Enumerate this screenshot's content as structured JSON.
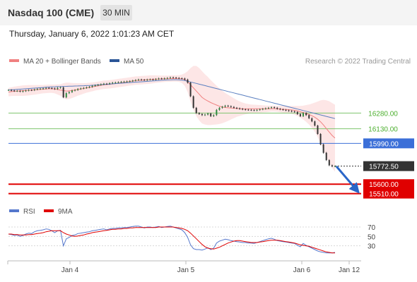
{
  "header": {
    "title": "Nasdaq 100 (CME)",
    "interval": "30 MIN"
  },
  "datetime": "Thursday, January 6, 2022 1:01:23 AM CET",
  "legend": [
    {
      "label": "MA 20 + Bollinger Bands",
      "color": "#f08080"
    },
    {
      "label": "MA 50",
      "color": "#2a5597"
    }
  ],
  "credit": "Research © 2022 Trading Central",
  "chart_data": [
    {
      "type": "candlestick",
      "title": "",
      "ylim": [
        15460,
        16700
      ],
      "x_labels": [
        "Jan 4",
        "Jan 5",
        "Jan 6",
        "Jan 12"
      ],
      "last_price": 15772.5,
      "levels": [
        {
          "label": "16280.00",
          "value": 16280,
          "color": "#7ec46e",
          "kind": "resistance"
        },
        {
          "label": "16130.00",
          "value": 16130,
          "color": "#7ec46e",
          "kind": "resistance"
        },
        {
          "label": "15990.00",
          "value": 15990,
          "color": "#3b6fd8",
          "kind": "pivot"
        },
        {
          "label": "15772.50",
          "value": 15772.5,
          "color": "#333333",
          "kind": "last"
        },
        {
          "label": "15600.00",
          "value": 15600,
          "color": "#e00000",
          "kind": "support"
        },
        {
          "label": "15510.00",
          "value": 15510,
          "color": "#e00000",
          "kind": "support"
        }
      ],
      "closes": [
        16500,
        16495,
        16490,
        16492,
        16485,
        16490,
        16495,
        16500,
        16498,
        16505,
        16510,
        16512,
        16515,
        16520,
        16518,
        16515,
        16510,
        16520,
        16525,
        16430,
        16470,
        16480,
        16495,
        16500,
        16510,
        16515,
        16520,
        16525,
        16530,
        16540,
        16545,
        16550,
        16555,
        16560,
        16558,
        16565,
        16570,
        16572,
        16575,
        16578,
        16580,
        16582,
        16585,
        16590,
        16595,
        16600,
        16598,
        16595,
        16600,
        16602,
        16600,
        16605,
        16610,
        16608,
        16612,
        16615,
        16620,
        16618,
        16615,
        16612,
        16610,
        16600,
        16570,
        16440,
        16330,
        16280,
        16270,
        16260,
        16265,
        16275,
        16250,
        16260,
        16310,
        16330,
        16340,
        16350,
        16345,
        16338,
        16330,
        16325,
        16320,
        16315,
        16312,
        16310,
        16308,
        16305,
        16310,
        16315,
        16320,
        16325,
        16330,
        16335,
        16330,
        16320,
        16315,
        16310,
        16305,
        16300,
        16295,
        16290,
        16270,
        16250,
        16280,
        16260,
        16230,
        16200,
        16160,
        16080,
        15980,
        15900,
        15830,
        15780,
        15770,
        15772.5
      ],
      "ma20": [
        16480,
        16485,
        16488,
        16490,
        16492,
        16494,
        16496,
        16498,
        16500,
        16502,
        16504,
        16506,
        16508,
        16510,
        16512,
        16512,
        16510,
        16505,
        16500,
        16495,
        16490,
        16492,
        16495,
        16500,
        16505,
        16510,
        16515,
        16520,
        16525,
        16530,
        16535,
        16540,
        16545,
        16550,
        16552,
        16555,
        16558,
        16562,
        16566,
        16570,
        16574,
        16578,
        16582,
        16586,
        16590,
        16592,
        16594,
        16596,
        16598,
        16600,
        16602,
        16604,
        16605,
        16606,
        16607,
        16608,
        16609,
        16610,
        16610,
        16610,
        16608,
        16600,
        16580,
        16550,
        16520,
        16490,
        16460,
        16430,
        16410,
        16395,
        16380,
        16368,
        16356,
        16345,
        16338,
        16333,
        16330,
        16328,
        16326,
        16324,
        16322,
        16320,
        16320,
        16320,
        16320,
        16320,
        16320,
        16320,
        16320,
        16320,
        16320,
        16322,
        16322,
        16320,
        16318,
        16316,
        16314,
        16312,
        16310,
        16306,
        16300,
        16292,
        16284,
        16276,
        16266,
        16254,
        16240,
        16220,
        16196,
        16166,
        16132,
        16098,
        16066,
        16040
      ],
      "ma50": [
        16500,
        16502,
        16504,
        16506,
        16508,
        16510,
        16512,
        16514,
        16516,
        16518,
        16520,
        16522,
        16524,
        16526,
        16528,
        16530,
        16531,
        16532,
        16533,
        16534,
        16535,
        16536,
        16537,
        16538,
        16539,
        16540,
        16541,
        16542,
        16543,
        16545,
        16547,
        16549,
        16551,
        16553,
        16555,
        16557,
        16559,
        16561,
        16563,
        16565,
        16567,
        16569,
        16571,
        16573,
        16575,
        16577,
        16579,
        16581,
        16583,
        16585,
        16587,
        16589,
        16591,
        16593,
        16595,
        16596,
        16597,
        16598,
        16598,
        16597,
        16595,
        16590,
        16584,
        16577,
        16570,
        16563,
        16556,
        16549,
        16542,
        16535,
        16528,
        16521,
        16514,
        16507,
        16500,
        16493,
        16486,
        16479,
        16472,
        16465,
        16458,
        16451,
        16444,
        16437,
        16430,
        16423,
        16416,
        16409,
        16402,
        16395,
        16388,
        16381,
        16374,
        16367,
        16360,
        16353,
        16346,
        16339,
        16332,
        16325,
        16318,
        16311,
        16304,
        16297,
        16290,
        16283,
        16276,
        16269,
        16262,
        16255,
        16248,
        16241,
        16234,
        16227
      ],
      "bb_width": [
        40,
        42,
        44,
        46,
        48,
        50,
        50,
        50,
        48,
        46,
        44,
        42,
        40,
        40,
        40,
        40,
        42,
        48,
        55,
        70,
        80,
        78,
        72,
        66,
        60,
        55,
        50,
        46,
        44,
        42,
        40,
        40,
        40,
        40,
        40,
        40,
        40,
        40,
        40,
        40,
        40,
        40,
        40,
        40,
        40,
        40,
        40,
        40,
        40,
        40,
        38,
        36,
        34,
        32,
        30,
        30,
        30,
        30,
        30,
        32,
        40,
        60,
        100,
        160,
        210,
        240,
        250,
        250,
        240,
        230,
        215,
        200,
        185,
        170,
        155,
        140,
        125,
        110,
        95,
        80,
        70,
        60,
        52,
        46,
        42,
        40,
        38,
        36,
        34,
        32,
        30,
        28,
        28,
        28,
        30,
        32,
        34,
        36,
        38,
        42,
        48,
        56,
        66,
        80,
        96,
        116,
        140,
        170,
        205,
        240,
        270,
        295,
        310,
        320
      ]
    },
    {
      "type": "line",
      "title": "",
      "ylim": [
        10,
        85
      ],
      "y_ticks": [
        70,
        50,
        30
      ],
      "series": [
        {
          "name": "RSI",
          "color": "#5577cc",
          "values": [
            55,
            54,
            52,
            53,
            50,
            52,
            55,
            57,
            56,
            60,
            62,
            63,
            64,
            66,
            65,
            62,
            58,
            62,
            63,
            30,
            45,
            48,
            52,
            53,
            56,
            57,
            58,
            59,
            60,
            62,
            63,
            64,
            65,
            66,
            64,
            66,
            67,
            67,
            68,
            68,
            69,
            69,
            70,
            71,
            72,
            72,
            70,
            68,
            70,
            70,
            69,
            70,
            71,
            69,
            70,
            71,
            72,
            70,
            68,
            66,
            64,
            58,
            48,
            32,
            24,
            22,
            22,
            21,
            23,
            26,
            22,
            25,
            36,
            40,
            42,
            44,
            43,
            41,
            40,
            39,
            38,
            37,
            37,
            36,
            36,
            35,
            37,
            39,
            41,
            43,
            45,
            46,
            44,
            41,
            40,
            39,
            38,
            37,
            36,
            35,
            31,
            28,
            35,
            31,
            28,
            25,
            22,
            19,
            17,
            16,
            15,
            15,
            15,
            16
          ]
        },
        {
          "name": "9MA",
          "color": "#e00000",
          "values": [
            55,
            55,
            54,
            54,
            53,
            53,
            53,
            54,
            54,
            55,
            56,
            57,
            58,
            60,
            61,
            62,
            62,
            62,
            62,
            58,
            55,
            53,
            51,
            50,
            51,
            52,
            53,
            55,
            56,
            58,
            59,
            60,
            61,
            62,
            63,
            64,
            65,
            65,
            66,
            66,
            67,
            67,
            68,
            68,
            69,
            69,
            69,
            69,
            69,
            69,
            69,
            69,
            70,
            70,
            70,
            70,
            70,
            70,
            69,
            68,
            67,
            65,
            62,
            57,
            51,
            45,
            39,
            33,
            28,
            25,
            24,
            23,
            25,
            27,
            30,
            33,
            36,
            38,
            40,
            41,
            41,
            40,
            39,
            38,
            37,
            37,
            37,
            38,
            39,
            40,
            41,
            42,
            42,
            42,
            41,
            40,
            39,
            38,
            37,
            36,
            34,
            32,
            31,
            30,
            29,
            27,
            25,
            23,
            21,
            19,
            17,
            16,
            15,
            15
          ]
        }
      ]
    }
  ]
}
